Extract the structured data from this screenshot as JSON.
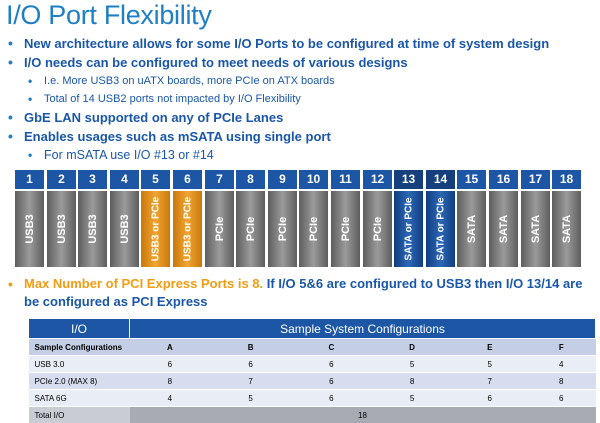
{
  "title": "I/O Port Flexibility",
  "bullets": {
    "b1": "New architecture allows for some I/O Ports to be configured at time of system design",
    "b2": "I/O needs can be configured to meet needs of various designs",
    "b2a": "I.e. More USB3 on uATX boards, more PCIe on ATX boards",
    "b2b": "Total of 14 USB2 ports not impacted by I/O Flexibility",
    "b3": "GbE LAN supported on any of PCIe Lanes",
    "b4": "Enables usages such as mSATA using single port",
    "b4a": "For mSATA use I/O #13 or #14"
  },
  "ports": [
    {
      "num": "1",
      "label": "USB3",
      "color": "gray"
    },
    {
      "num": "2",
      "label": "USB3",
      "color": "gray"
    },
    {
      "num": "3",
      "label": "USB3",
      "color": "gray"
    },
    {
      "num": "4",
      "label": "USB3",
      "color": "gray"
    },
    {
      "num": "5",
      "label": "USB3 or PCIe",
      "color": "orange"
    },
    {
      "num": "6",
      "label": "USB3 or PCIe",
      "color": "orange"
    },
    {
      "num": "7",
      "label": "PCIe",
      "color": "gray"
    },
    {
      "num": "8",
      "label": "PCIe",
      "color": "gray"
    },
    {
      "num": "9",
      "label": "PCIe",
      "color": "gray"
    },
    {
      "num": "10",
      "label": "PCIe",
      "color": "gray"
    },
    {
      "num": "11",
      "label": "PCIe",
      "color": "gray"
    },
    {
      "num": "12",
      "label": "PCIe",
      "color": "gray"
    },
    {
      "num": "13",
      "label": "SATA or PCIe",
      "color": "blue"
    },
    {
      "num": "14",
      "label": "SATA or PCIe",
      "color": "blue"
    },
    {
      "num": "15",
      "label": "SATA",
      "color": "gray"
    },
    {
      "num": "16",
      "label": "SATA",
      "color": "gray"
    },
    {
      "num": "17",
      "label": "SATA",
      "color": "gray"
    },
    {
      "num": "18",
      "label": "SATA",
      "color": "gray"
    }
  ],
  "note": {
    "orange_part": "Max Number of PCI Express Ports is 8.",
    "blue_part": "If I/O 5&6 are configured to USB3 then I/O 13/14 are",
    "line2": "be configured as PCI Express"
  },
  "table": {
    "col_io": "I/O",
    "col_configs": "Sample System Configurations",
    "subheader_label": "Sample Configurations",
    "config_names": [
      "A",
      "B",
      "C",
      "D",
      "E",
      "F"
    ],
    "rows": [
      {
        "label": "USB 3.0",
        "values": [
          "6",
          "6",
          "6",
          "5",
          "5",
          "4"
        ]
      },
      {
        "label": "PCIe 2.0 (MAX 8)",
        "values": [
          "8",
          "7",
          "6",
          "8",
          "7",
          "8"
        ]
      },
      {
        "label": "SATA 6G",
        "values": [
          "4",
          "5",
          "6",
          "5",
          "6",
          "6"
        ]
      }
    ],
    "total_label": "Total I/O",
    "total_value": "18"
  },
  "colors": {
    "accent_blue": "#1c56a4",
    "title_blue": "#1f7fc4",
    "orange": "#f39c12",
    "gray_port": "#7c7c7c"
  }
}
